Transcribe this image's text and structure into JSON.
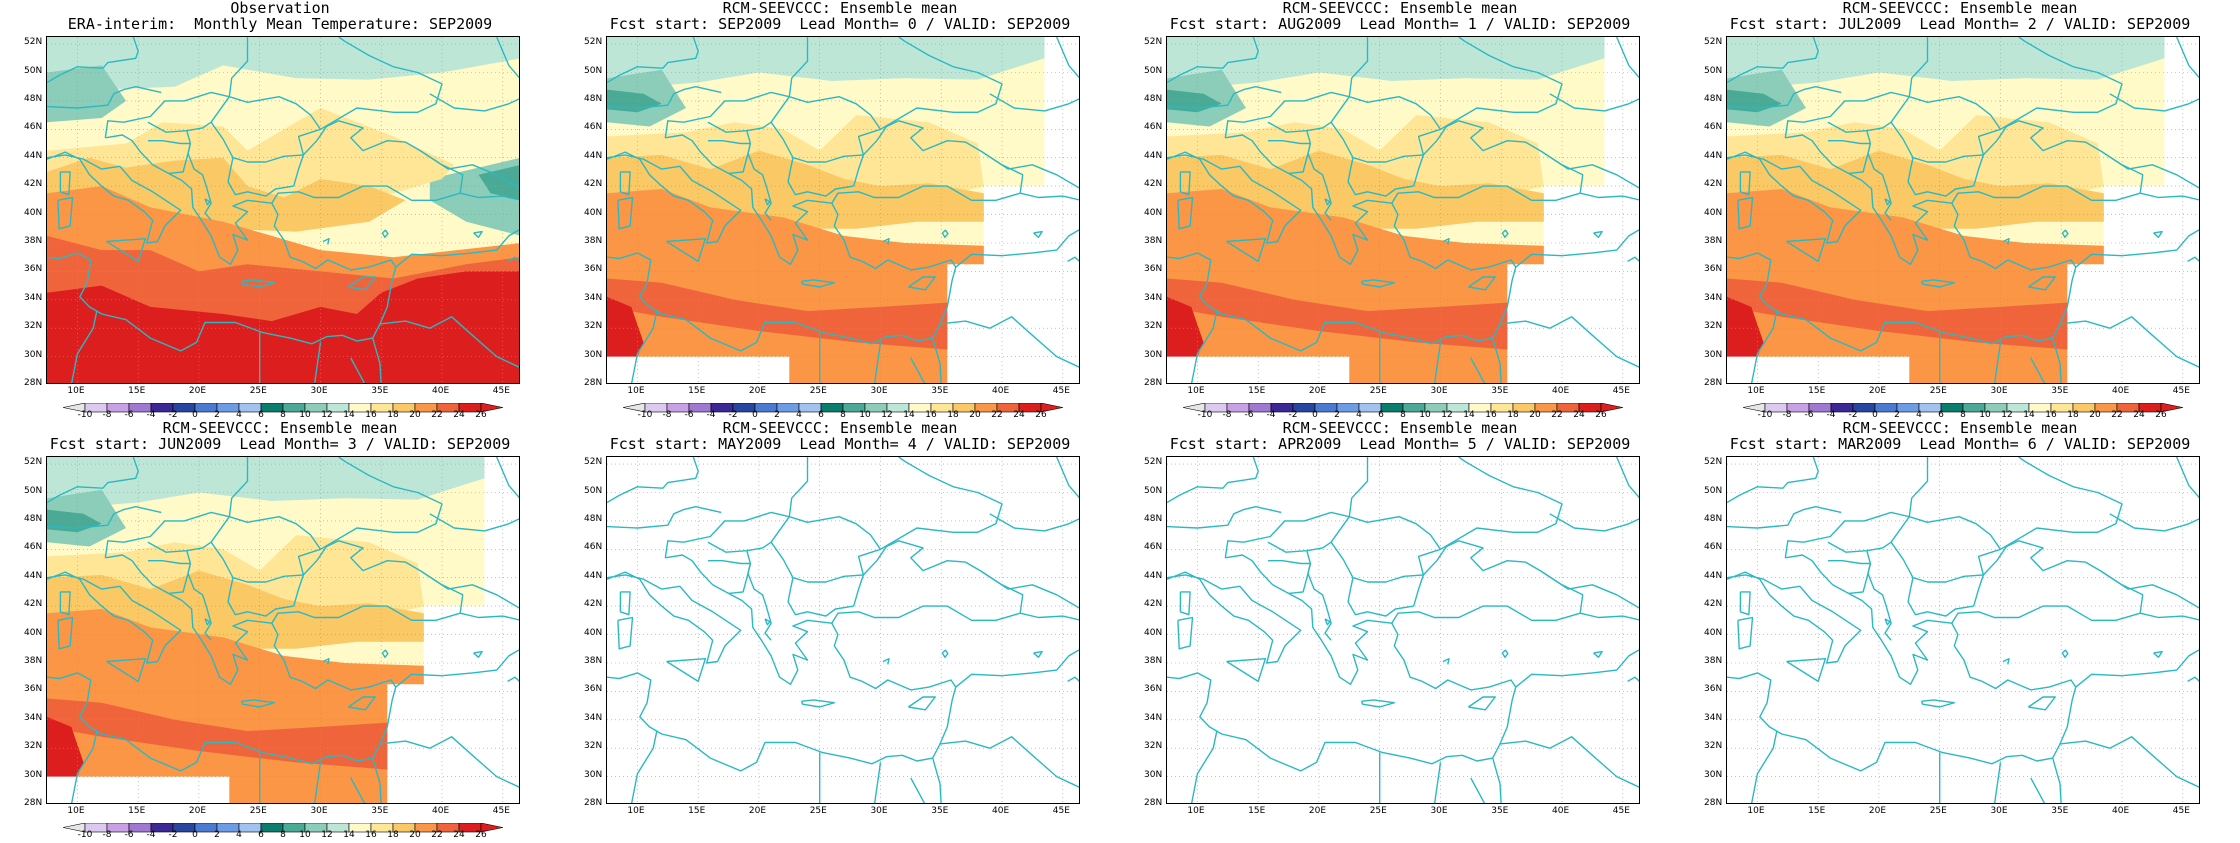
{
  "panels": [
    {
      "title_line1": "Observation",
      "title_line2": "ERA-interim:  Monthly Mean Temperature: SEP2009",
      "field": "obs"
    },
    {
      "title_line1": "RCM-SEEVCCC: Ensemble mean",
      "title_line2": "Fcst start: SEP2009  Lead Month= 0 / VALID: SEP2009",
      "field": "fcst"
    },
    {
      "title_line1": "RCM-SEEVCCC: Ensemble mean",
      "title_line2": "Fcst start: AUG2009  Lead Month= 1 / VALID: SEP2009",
      "field": "fcst"
    },
    {
      "title_line1": "RCM-SEEVCCC: Ensemble mean",
      "title_line2": "Fcst start: JUL2009  Lead Month= 2 / VALID: SEP2009",
      "field": "fcst"
    },
    {
      "title_line1": "RCM-SEEVCCC: Ensemble mean",
      "title_line2": "Fcst start: JUN2009  Lead Month= 3 / VALID: SEP2009",
      "field": "fcst"
    },
    {
      "title_line1": "RCM-SEEVCCC: Ensemble mean",
      "title_line2": "Fcst start: MAY2009  Lead Month= 4 / VALID: SEP2009",
      "field": "none"
    },
    {
      "title_line1": "RCM-SEEVCCC: Ensemble mean",
      "title_line2": "Fcst start: APR2009  Lead Month= 5 / VALID: SEP2009",
      "field": "none"
    },
    {
      "title_line1": "RCM-SEEVCCC: Ensemble mean",
      "title_line2": "Fcst start: MAR2009  Lead Month= 6 / VALID: SEP2009",
      "field": "none"
    }
  ],
  "lat_ticks": [
    "52N",
    "50N",
    "48N",
    "46N",
    "44N",
    "42N",
    "40N",
    "38N",
    "36N",
    "34N",
    "32N",
    "30N",
    "28N"
  ],
  "lon_ticks": [
    "10E",
    "15E",
    "20E",
    "25E",
    "30E",
    "35E",
    "40E",
    "45E"
  ],
  "colorbar": {
    "labels": [
      "-10",
      "-8",
      "-6",
      "-4",
      "-2",
      "0",
      "2",
      "4",
      "6",
      "8",
      "10",
      "12",
      "14",
      "16",
      "18",
      "20",
      "22",
      "24",
      "26"
    ],
    "colors": [
      "#e6e6e6",
      "#dcc8f0",
      "#c8a0e6",
      "#a07ad2",
      "#3c2896",
      "#2846a0",
      "#4a7ad2",
      "#6e9be6",
      "#a0c3f0",
      "#0a7d6e",
      "#4aaa96",
      "#8ccdb9",
      "#bee6d7",
      "#fffac8",
      "#ffe696",
      "#fac864",
      "#fa9646",
      "#f0643c",
      "#dc1e1e"
    ]
  },
  "colors": {
    "coast": "#2ab9c4",
    "c12": "#8ccdb9",
    "c10": "#4aaa96",
    "c8": "#0a7d6e",
    "c14": "#bee6d7",
    "c16": "#fffac8",
    "c18": "#ffe696",
    "c20": "#fac864",
    "c22": "#fa9646",
    "c24": "#f0643c",
    "c26": "#dc1e1e"
  }
}
